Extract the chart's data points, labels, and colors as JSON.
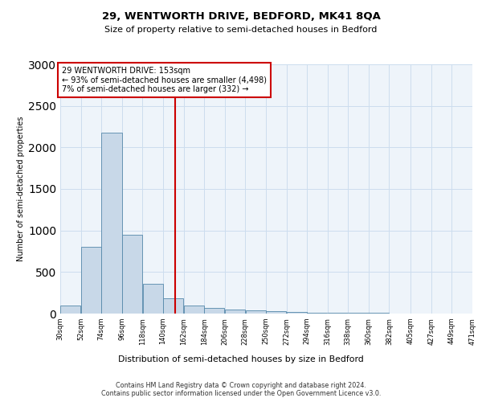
{
  "title1": "29, WENTWORTH DRIVE, BEDFORD, MK41 8QA",
  "title2": "Size of property relative to semi-detached houses in Bedford",
  "xlabel": "Distribution of semi-detached houses by size in Bedford",
  "ylabel": "Number of semi-detached properties",
  "footer1": "Contains HM Land Registry data © Crown copyright and database right 2024.",
  "footer2": "Contains public sector information licensed under the Open Government Licence v3.0.",
  "annotation_title": "29 WENTWORTH DRIVE: 153sqm",
  "annotation_line1": "← 93% of semi-detached houses are smaller (4,498)",
  "annotation_line2": "7% of semi-detached houses are larger (332) →",
  "bar_left_edges": [
    30,
    52,
    74,
    96,
    118,
    140,
    162,
    184,
    206,
    228,
    250,
    272,
    294,
    316,
    338,
    360,
    382,
    405,
    427,
    449
  ],
  "bar_widths": [
    22,
    22,
    22,
    22,
    22,
    22,
    22,
    22,
    22,
    22,
    22,
    22,
    22,
    22,
    22,
    22,
    23,
    22,
    22,
    22
  ],
  "bar_heights": [
    100,
    800,
    2175,
    950,
    360,
    180,
    100,
    70,
    50,
    35,
    25,
    15,
    10,
    8,
    5,
    5,
    3,
    3,
    3,
    3
  ],
  "bar_color": "#c8d8e8",
  "bar_edge_color": "#5588aa",
  "vline_color": "#cc0000",
  "vline_x": 153,
  "ylim": [
    0,
    3000
  ],
  "yticks": [
    0,
    500,
    1000,
    1500,
    2000,
    2500,
    3000
  ],
  "tick_labels": [
    "30sqm",
    "52sqm",
    "74sqm",
    "96sqm",
    "118sqm",
    "140sqm",
    "162sqm",
    "184sqm",
    "206sqm",
    "228sqm",
    "250sqm",
    "272sqm",
    "294sqm",
    "316sqm",
    "338sqm",
    "360sqm",
    "382sqm",
    "405sqm",
    "427sqm",
    "449sqm",
    "471sqm"
  ],
  "annotation_box_color": "#ffffff",
  "annotation_box_edge": "#cc0000",
  "grid_color": "#ccddee",
  "bg_color": "#eef4fa",
  "fig_bg": "#ffffff"
}
